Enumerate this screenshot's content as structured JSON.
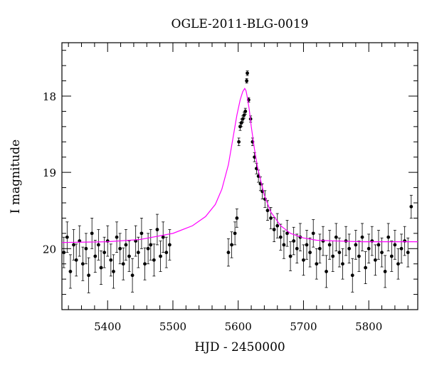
{
  "chart_data": {
    "type": "scatter",
    "title": "OGLE-2011-BLG-0019",
    "xlabel": "HJD - 2450000",
    "ylabel": "I magnitude",
    "xlim": [
      5330,
      5875
    ],
    "ylim": [
      20.8,
      17.3
    ],
    "y_inverted": true,
    "x_ticks": [
      5400,
      5500,
      5600,
      5700,
      5800
    ],
    "x_tick_labels": [
      "5400",
      "5500",
      "5600",
      "5700",
      "5800"
    ],
    "y_ticks": [
      18,
      19,
      20
    ],
    "y_tick_labels": [
      "18",
      "19",
      "20"
    ],
    "grid": false,
    "legend": "none",
    "series": [
      {
        "kind": "points_with_errorbars",
        "color": "#000000",
        "x": [
          5333,
          5338,
          5343,
          5348,
          5352,
          5357,
          5362,
          5367,
          5371,
          5376,
          5381,
          5386,
          5390,
          5395,
          5400,
          5405,
          5409,
          5414,
          5419,
          5424,
          5428,
          5433,
          5438,
          5443,
          5447,
          5452,
          5457,
          5462,
          5466,
          5471,
          5476,
          5481,
          5485,
          5490,
          5495,
          5585,
          5590,
          5595,
          5598,
          5601,
          5603,
          5605,
          5607,
          5609,
          5611,
          5613,
          5614,
          5616,
          5619,
          5622,
          5625,
          5628,
          5631,
          5634,
          5637,
          5641,
          5645,
          5650,
          5655,
          5660,
          5665,
          5670,
          5675,
          5680,
          5685,
          5690,
          5695,
          5700,
          5705,
          5710,
          5715,
          5720,
          5725,
          5730,
          5735,
          5740,
          5745,
          5750,
          5755,
          5760,
          5765,
          5770,
          5775,
          5780,
          5785,
          5790,
          5795,
          5800,
          5805,
          5810,
          5815,
          5820,
          5825,
          5830,
          5835,
          5840,
          5845,
          5850,
          5855,
          5860,
          5865
        ],
        "y": [
          20.05,
          19.85,
          20.3,
          19.95,
          20.15,
          19.9,
          20.2,
          20.0,
          20.35,
          19.8,
          20.1,
          19.95,
          20.25,
          20.05,
          19.9,
          20.15,
          20.3,
          19.85,
          20.0,
          20.2,
          19.95,
          20.1,
          20.35,
          19.9,
          20.05,
          19.8,
          20.2,
          20.0,
          19.95,
          20.15,
          19.75,
          20.1,
          19.85,
          20.05,
          19.95,
          20.05,
          19.95,
          19.8,
          19.6,
          18.6,
          18.4,
          18.35,
          18.3,
          18.25,
          18.2,
          17.8,
          17.7,
          18.05,
          18.3,
          18.6,
          18.8,
          18.95,
          19.05,
          19.15,
          19.25,
          19.35,
          19.5,
          19.6,
          19.75,
          19.7,
          19.85,
          19.95,
          19.8,
          20.1,
          19.9,
          20.0,
          19.85,
          20.15,
          19.95,
          20.05,
          19.8,
          20.2,
          20.0,
          19.9,
          20.3,
          19.95,
          20.1,
          19.85,
          20.05,
          20.2,
          19.9,
          20.0,
          20.35,
          19.95,
          20.1,
          19.85,
          20.25,
          20.0,
          19.9,
          20.15,
          19.95,
          20.05,
          20.3,
          19.85,
          20.1,
          19.95,
          20.2,
          20.0,
          19.9,
          20.05,
          19.45
        ],
        "yerr": [
          0.2,
          0.2,
          0.22,
          0.2,
          0.21,
          0.2,
          0.22,
          0.2,
          0.23,
          0.2,
          0.21,
          0.2,
          0.22,
          0.2,
          0.2,
          0.21,
          0.22,
          0.2,
          0.2,
          0.21,
          0.2,
          0.2,
          0.22,
          0.2,
          0.2,
          0.2,
          0.21,
          0.2,
          0.2,
          0.21,
          0.2,
          0.2,
          0.2,
          0.2,
          0.2,
          0.18,
          0.17,
          0.15,
          0.12,
          0.05,
          0.05,
          0.05,
          0.04,
          0.04,
          0.04,
          0.03,
          0.03,
          0.03,
          0.04,
          0.05,
          0.06,
          0.07,
          0.08,
          0.09,
          0.1,
          0.11,
          0.13,
          0.14,
          0.16,
          0.16,
          0.17,
          0.18,
          0.17,
          0.19,
          0.18,
          0.19,
          0.18,
          0.2,
          0.19,
          0.19,
          0.18,
          0.2,
          0.19,
          0.19,
          0.21,
          0.19,
          0.2,
          0.18,
          0.19,
          0.2,
          0.19,
          0.19,
          0.22,
          0.19,
          0.2,
          0.18,
          0.21,
          0.19,
          0.19,
          0.2,
          0.19,
          0.19,
          0.21,
          0.18,
          0.2,
          0.19,
          0.2,
          0.19,
          0.19,
          0.19,
          0.15
        ]
      },
      {
        "kind": "model_curve",
        "color": "#ff00ff",
        "x": [
          5330,
          5400,
          5450,
          5500,
          5530,
          5550,
          5565,
          5575,
          5585,
          5592,
          5598,
          5603,
          5607,
          5610,
          5612,
          5614,
          5617,
          5620,
          5625,
          5630,
          5640,
          5650,
          5665,
          5680,
          5700,
          5720,
          5750,
          5790,
          5830,
          5875
        ],
        "y": [
          19.92,
          19.91,
          19.88,
          19.8,
          19.7,
          19.58,
          19.42,
          19.22,
          18.9,
          18.55,
          18.25,
          18.05,
          17.94,
          17.9,
          17.93,
          18.02,
          18.18,
          18.4,
          18.7,
          18.95,
          19.3,
          19.52,
          19.7,
          19.8,
          19.86,
          19.89,
          19.9,
          19.91,
          19.91,
          19.91
        ]
      }
    ]
  }
}
